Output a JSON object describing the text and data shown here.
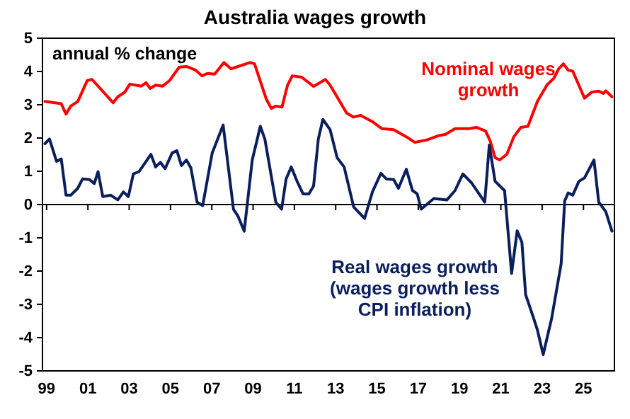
{
  "chart_data": {
    "type": "line",
    "title": "Australia wages growth",
    "ylabel": "annual % change",
    "xlim": [
      1998.8,
      2026.5
    ],
    "xticks": [
      {
        "value": 1999,
        "label": "99"
      },
      {
        "value": 2001,
        "label": "01"
      },
      {
        "value": 2003,
        "label": "03"
      },
      {
        "value": 2005,
        "label": "05"
      },
      {
        "value": 2007,
        "label": "07"
      },
      {
        "value": 2009,
        "label": "09"
      },
      {
        "value": 2011,
        "label": "11"
      },
      {
        "value": 2013,
        "label": "13"
      },
      {
        "value": 2015,
        "label": "15"
      },
      {
        "value": 2017,
        "label": "17"
      },
      {
        "value": 2019,
        "label": "19"
      },
      {
        "value": 2021,
        "label": "21"
      },
      {
        "value": 2023,
        "label": "23"
      },
      {
        "value": 2025,
        "label": "25"
      }
    ],
    "ylim": [
      -5,
      5
    ],
    "yticks": [
      -5,
      -4,
      -3,
      -2,
      -1,
      0,
      1,
      2,
      3,
      4,
      5
    ],
    "grid": false,
    "legend": false,
    "ref_lines": [
      {
        "axis": "y",
        "value": 0,
        "color": "#000000"
      }
    ],
    "series": [
      {
        "name": "Nominal wages\ngrowth",
        "color": "#ff0000",
        "x": [
          1998.92,
          1999.71,
          1999.94,
          2000.17,
          2000.51,
          2000.97,
          2001.2,
          2002.22,
          2002.45,
          2002.79,
          2003.03,
          2003.59,
          2003.82,
          2004.01,
          2004.28,
          2004.62,
          2004.96,
          2005.42,
          2005.77,
          2006.22,
          2006.52,
          2006.79,
          2007.14,
          2007.59,
          2007.93,
          2008.85,
          2009.07,
          2009.3,
          2009.64,
          2009.88,
          2010.1,
          2010.4,
          2010.67,
          2010.9,
          2011.35,
          2011.93,
          2012.5,
          2012.73,
          2013.53,
          2013.87,
          2014.21,
          2014.78,
          2015.24,
          2015.81,
          2016.49,
          2016.83,
          2017.41,
          2017.98,
          2018.32,
          2018.78,
          2019.46,
          2019.81,
          2020.26,
          2020.49,
          2020.72,
          2020.94,
          2021.29,
          2021.63,
          2021.97,
          2022.31,
          2022.77,
          2023.23,
          2023.57,
          2023.8,
          2024.03,
          2024.26,
          2024.48,
          2025.05,
          2025.4,
          2025.74,
          2025.97,
          2026.08,
          2026.38
        ],
        "values": [
          3.1,
          3.03,
          2.72,
          2.96,
          3.1,
          3.73,
          3.76,
          3.06,
          3.24,
          3.38,
          3.62,
          3.56,
          3.66,
          3.49,
          3.59,
          3.56,
          3.73,
          4.13,
          4.15,
          4.04,
          3.87,
          3.94,
          3.92,
          4.27,
          4.08,
          4.27,
          4.23,
          3.8,
          3.17,
          2.89,
          2.96,
          2.93,
          3.59,
          3.87,
          3.83,
          3.55,
          3.76,
          3.59,
          2.75,
          2.63,
          2.68,
          2.49,
          2.28,
          2.25,
          2.01,
          1.87,
          1.94,
          2.07,
          2.11,
          2.28,
          2.28,
          2.32,
          2.21,
          1.9,
          1.41,
          1.34,
          1.51,
          2.04,
          2.32,
          2.35,
          3.1,
          3.59,
          3.8,
          4.08,
          4.23,
          4.04,
          4.01,
          3.2,
          3.38,
          3.41,
          3.34,
          3.42,
          3.24
        ]
      },
      {
        "name": "Real wages growth\n(wages growth less\nCPI inflation)",
        "color": "#0a1f5c",
        "x": [
          1998.92,
          1999.14,
          1999.48,
          1999.71,
          1999.94,
          2000.17,
          2000.51,
          2000.74,
          2001.08,
          2001.31,
          2001.49,
          2001.72,
          2002.11,
          2002.45,
          2002.72,
          2002.96,
          2003.2,
          2003.48,
          2003.71,
          2004.05,
          2004.28,
          2004.51,
          2004.74,
          2005.08,
          2005.31,
          2005.53,
          2005.77,
          2005.99,
          2006.29,
          2006.56,
          2007.02,
          2007.55,
          2008.05,
          2008.27,
          2008.57,
          2008.96,
          2009.35,
          2009.57,
          2010.1,
          2010.38,
          2010.6,
          2010.85,
          2011.13,
          2011.42,
          2011.7,
          2011.93,
          2012.16,
          2012.38,
          2012.73,
          2013.07,
          2013.41,
          2013.87,
          2014.4,
          2014.78,
          2015.19,
          2015.46,
          2015.81,
          2016.04,
          2016.42,
          2016.72,
          2016.95,
          2017.14,
          2017.75,
          2018.39,
          2018.78,
          2019.16,
          2019.57,
          2020.22,
          2020.44,
          2020.72,
          2021.18,
          2021.52,
          2021.79,
          2022.02,
          2022.2,
          2022.55,
          2022.77,
          2023.05,
          2023.46,
          2023.92,
          2024.09,
          2024.26,
          2024.48,
          2024.78,
          2025.05,
          2025.51,
          2025.74,
          2026.08,
          2026.38
        ],
        "values": [
          1.83,
          1.97,
          1.3,
          1.37,
          0.28,
          0.28,
          0.49,
          0.77,
          0.75,
          0.63,
          0.99,
          0.24,
          0.28,
          0.14,
          0.38,
          0.24,
          0.92,
          0.99,
          1.2,
          1.51,
          1.13,
          1.27,
          1.08,
          1.55,
          1.62,
          1.17,
          1.34,
          1.1,
          0.07,
          -0.03,
          1.55,
          2.39,
          -0.14,
          -0.35,
          -0.8,
          1.34,
          2.35,
          1.97,
          0.07,
          -0.14,
          0.77,
          1.13,
          0.7,
          0.32,
          0.32,
          0.56,
          1.97,
          2.56,
          2.25,
          1.41,
          1.13,
          -0.07,
          -0.42,
          0.38,
          0.94,
          0.77,
          0.75,
          0.49,
          1.06,
          0.42,
          0.32,
          -0.14,
          0.18,
          0.14,
          0.42,
          0.92,
          0.66,
          0.07,
          1.79,
          0.7,
          0.42,
          -2.07,
          -0.79,
          -1.14,
          -2.71,
          -3.35,
          -3.77,
          -4.51,
          -3.42,
          -1.78,
          0.1,
          0.35,
          0.28,
          0.7,
          0.8,
          1.34,
          0.07,
          -0.21,
          -0.8
        ]
      }
    ]
  }
}
